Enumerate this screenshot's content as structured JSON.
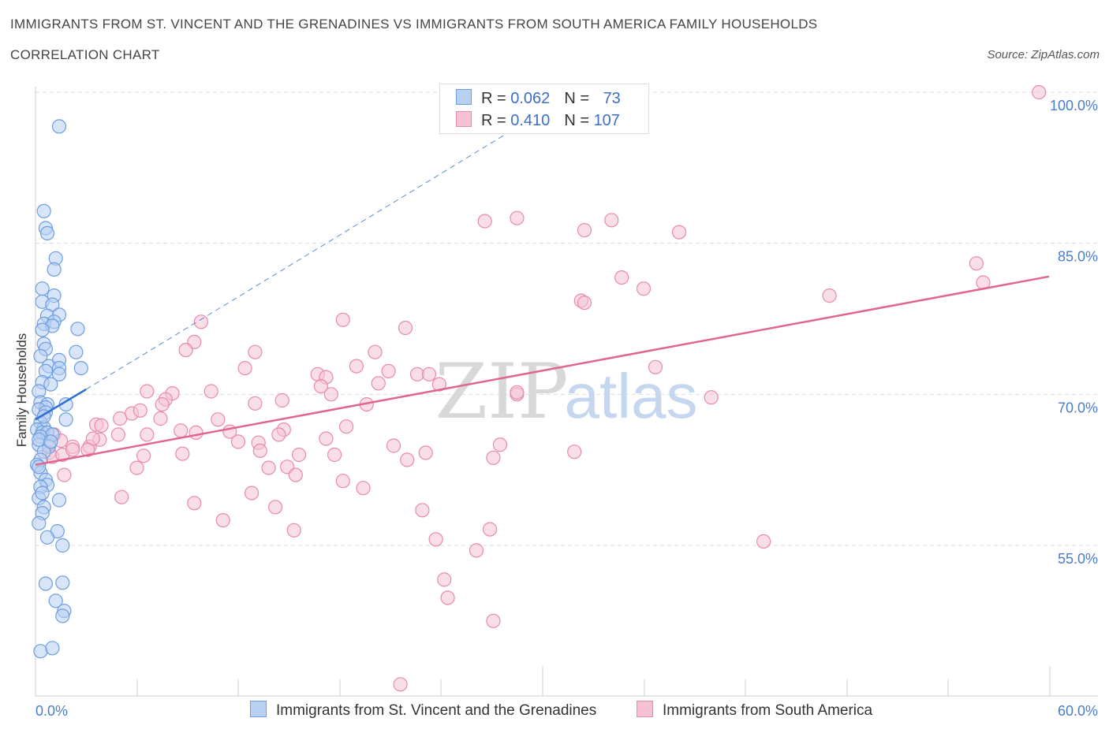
{
  "header": {
    "title": "IMMIGRANTS FROM ST. VINCENT AND THE GRENADINES VS IMMIGRANTS FROM SOUTH AMERICA FAMILY HOUSEHOLDS",
    "subtitle": "CORRELATION CHART",
    "source": "Source: ZipAtlas.com"
  },
  "legend": {
    "rows": [
      {
        "r_label": "R = ",
        "r_value": "0.062",
        "n_label": "N = ",
        "n_value": "73"
      },
      {
        "r_label": "R = ",
        "r_value": "0.410",
        "n_label": "N = ",
        "n_value": "107"
      }
    ]
  },
  "watermark": {
    "zip": "ZIP",
    "atlas": "atlas"
  },
  "colors": {
    "blue_fill": "#b8d0f2",
    "blue_stroke": "#6d9de0",
    "blue_line": "#2f6fd1",
    "pink_fill": "#f6c2d3",
    "pink_stroke": "#e88aa9",
    "pink_line": "#e0668e",
    "grid": "#dddddd",
    "tick_text": "#4a7cc9"
  },
  "chart_data": {
    "type": "scatter",
    "xlabel": "",
    "ylabel": "Family Households",
    "xlim": [
      0,
      60
    ],
    "ylim": [
      40,
      100
    ],
    "x_tick_labels": [
      "0.0%",
      "60.0%"
    ],
    "y_ticks": [
      {
        "value": 100,
        "label": "100.0%"
      },
      {
        "value": 85,
        "label": "85.0%"
      },
      {
        "value": 70,
        "label": "70.0%"
      },
      {
        "value": 55,
        "label": "55.0%"
      }
    ],
    "grid": "horizontal dashed",
    "legend_position": "top-center",
    "series": [
      {
        "name": "Immigrants from St. Vincent and the Grenadines",
        "color": "blue",
        "trend": {
          "x": [
            0,
            3
          ],
          "y": [
            67.5,
            70.5
          ]
        },
        "trend_extension": {
          "x": [
            3,
            28
          ],
          "y": [
            70.5,
            96
          ]
        },
        "points": [
          [
            1.4,
            96.6
          ],
          [
            0.5,
            88.2
          ],
          [
            0.6,
            86.5
          ],
          [
            0.7,
            86.0
          ],
          [
            1.2,
            83.5
          ],
          [
            1.1,
            82.4
          ],
          [
            0.4,
            80.5
          ],
          [
            1.1,
            79.8
          ],
          [
            0.4,
            79.2
          ],
          [
            1.0,
            78.9
          ],
          [
            0.7,
            77.8
          ],
          [
            1.4,
            77.9
          ],
          [
            0.5,
            77.0
          ],
          [
            1.1,
            77.2
          ],
          [
            1.0,
            76.8
          ],
          [
            2.5,
            76.5
          ],
          [
            0.4,
            76.4
          ],
          [
            0.5,
            75.0
          ],
          [
            0.6,
            74.5
          ],
          [
            2.4,
            74.2
          ],
          [
            0.3,
            73.8
          ],
          [
            1.4,
            73.4
          ],
          [
            0.8,
            72.8
          ],
          [
            2.7,
            72.6
          ],
          [
            0.6,
            72.3
          ],
          [
            1.4,
            72.6
          ],
          [
            1.4,
            72.0
          ],
          [
            0.4,
            71.2
          ],
          [
            0.9,
            71.0
          ],
          [
            0.2,
            70.3
          ],
          [
            0.3,
            69.2
          ],
          [
            0.7,
            69.0
          ],
          [
            0.6,
            68.7
          ],
          [
            0.2,
            68.5
          ],
          [
            0.6,
            68.2
          ],
          [
            1.8,
            69.0
          ],
          [
            1.8,
            67.5
          ],
          [
            0.3,
            67.2
          ],
          [
            0.5,
            66.7
          ],
          [
            0.1,
            66.5
          ],
          [
            0.4,
            66.2
          ],
          [
            0.7,
            66.2
          ],
          [
            1.0,
            66.0
          ],
          [
            0.3,
            65.8
          ],
          [
            0.2,
            65.0
          ],
          [
            0.8,
            64.8
          ],
          [
            0.5,
            64.3
          ],
          [
            0.3,
            63.5
          ],
          [
            0.1,
            63.0
          ],
          [
            0.3,
            62.2
          ],
          [
            0.6,
            61.5
          ],
          [
            0.7,
            61.0
          ],
          [
            0.3,
            60.8
          ],
          [
            0.2,
            59.7
          ],
          [
            1.4,
            59.5
          ],
          [
            0.5,
            58.8
          ],
          [
            0.4,
            58.2
          ],
          [
            0.2,
            57.2
          ],
          [
            1.3,
            56.4
          ],
          [
            0.7,
            55.8
          ],
          [
            1.6,
            55.0
          ],
          [
            0.6,
            51.2
          ],
          [
            1.6,
            51.3
          ],
          [
            1.2,
            49.5
          ],
          [
            1.7,
            48.5
          ],
          [
            1.6,
            48.0
          ],
          [
            0.3,
            44.5
          ],
          [
            1.0,
            44.8
          ],
          [
            0.2,
            65.5
          ],
          [
            0.9,
            65.3
          ],
          [
            0.2,
            62.8
          ],
          [
            0.4,
            60.2
          ],
          [
            0.5,
            67.8
          ]
        ]
      },
      {
        "name": "Immigrants from South America",
        "color": "pink",
        "trend": {
          "x": [
            0,
            60
          ],
          "y": [
            63.0,
            81.7
          ]
        },
        "points": [
          [
            27.0,
            100.0
          ],
          [
            59.4,
            100.0
          ],
          [
            28.5,
            87.5
          ],
          [
            26.6,
            87.2
          ],
          [
            32.5,
            86.3
          ],
          [
            34.1,
            87.3
          ],
          [
            38.1,
            86.1
          ],
          [
            55.7,
            83.0
          ],
          [
            34.7,
            81.6
          ],
          [
            36.0,
            80.5
          ],
          [
            56.1,
            81.1
          ],
          [
            32.3,
            79.3
          ],
          [
            32.5,
            79.1
          ],
          [
            47.0,
            79.8
          ],
          [
            9.8,
            77.2
          ],
          [
            18.2,
            77.4
          ],
          [
            21.9,
            76.6
          ],
          [
            9.4,
            75.2
          ],
          [
            8.9,
            74.4
          ],
          [
            13.0,
            74.2
          ],
          [
            20.1,
            74.2
          ],
          [
            12.4,
            72.6
          ],
          [
            19.0,
            72.8
          ],
          [
            16.7,
            72.0
          ],
          [
            20.9,
            72.3
          ],
          [
            22.6,
            72.0
          ],
          [
            23.3,
            72.0
          ],
          [
            36.7,
            72.7
          ],
          [
            17.2,
            71.7
          ],
          [
            16.9,
            70.8
          ],
          [
            20.3,
            71.1
          ],
          [
            23.9,
            71.0
          ],
          [
            6.6,
            70.3
          ],
          [
            8.1,
            70.1
          ],
          [
            10.4,
            70.3
          ],
          [
            13.0,
            69.1
          ],
          [
            14.6,
            69.4
          ],
          [
            17.5,
            70.0
          ],
          [
            28.5,
            70.0
          ],
          [
            28.5,
            70.2
          ],
          [
            19.6,
            69.0
          ],
          [
            7.7,
            69.5
          ],
          [
            7.5,
            69.0
          ],
          [
            5.7,
            68.1
          ],
          [
            6.2,
            68.4
          ],
          [
            40.0,
            69.7
          ],
          [
            5.0,
            67.6
          ],
          [
            3.6,
            67.0
          ],
          [
            3.9,
            66.9
          ],
          [
            7.4,
            67.6
          ],
          [
            10.8,
            67.5
          ],
          [
            8.6,
            66.4
          ],
          [
            4.9,
            66.0
          ],
          [
            6.6,
            66.0
          ],
          [
            9.5,
            66.2
          ],
          [
            11.5,
            66.3
          ],
          [
            14.7,
            66.5
          ],
          [
            14.4,
            66.0
          ],
          [
            18.4,
            66.8
          ],
          [
            1.1,
            66.0
          ],
          [
            1.5,
            65.4
          ],
          [
            2.2,
            64.8
          ],
          [
            3.2,
            64.8
          ],
          [
            0.8,
            65.0
          ],
          [
            0.8,
            64.2
          ],
          [
            1.0,
            63.8
          ],
          [
            1.6,
            64.0
          ],
          [
            2.2,
            64.5
          ],
          [
            3.8,
            65.5
          ],
          [
            3.4,
            65.6
          ],
          [
            12.0,
            65.3
          ],
          [
            13.2,
            65.2
          ],
          [
            17.2,
            65.6
          ],
          [
            21.2,
            64.9
          ],
          [
            27.1,
            63.7
          ],
          [
            27.5,
            65.0
          ],
          [
            22.0,
            63.5
          ],
          [
            23.1,
            64.2
          ],
          [
            8.7,
            64.1
          ],
          [
            6.4,
            63.9
          ],
          [
            31.9,
            64.3
          ],
          [
            15.6,
            64.0
          ],
          [
            17.7,
            64.0
          ],
          [
            6.0,
            62.7
          ],
          [
            13.8,
            62.7
          ],
          [
            14.9,
            62.8
          ],
          [
            15.4,
            62.0
          ],
          [
            1.7,
            62.0
          ],
          [
            18.2,
            61.4
          ],
          [
            19.4,
            60.7
          ],
          [
            12.8,
            60.2
          ],
          [
            5.1,
            59.8
          ],
          [
            9.4,
            59.2
          ],
          [
            14.2,
            58.8
          ],
          [
            22.9,
            58.5
          ],
          [
            11.1,
            57.5
          ],
          [
            26.9,
            56.6
          ],
          [
            15.3,
            56.5
          ],
          [
            23.7,
            55.6
          ],
          [
            26.1,
            54.5
          ],
          [
            43.1,
            55.4
          ],
          [
            24.2,
            51.6
          ],
          [
            24.4,
            49.8
          ],
          [
            27.1,
            47.5
          ],
          [
            21.6,
            41.2
          ],
          [
            13.3,
            64.4
          ],
          [
            3.1,
            64.5
          ]
        ]
      }
    ]
  }
}
